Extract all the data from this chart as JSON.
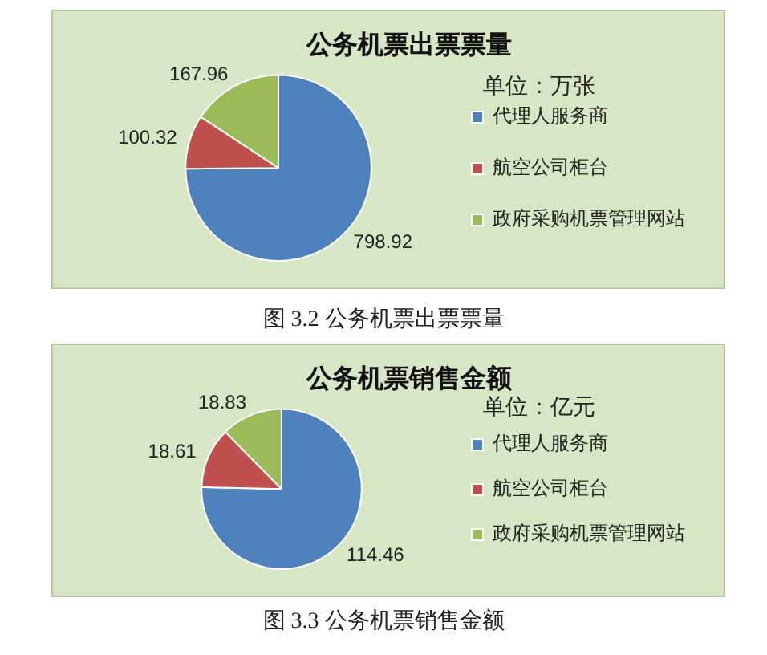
{
  "chart_data": [
    {
      "type": "pie",
      "title": "公务机票出票票量",
      "categories": [
        "代理人服务商",
        "航空公司柜台",
        "政府采购机票管理网站"
      ],
      "values": [
        798.92,
        100.32,
        167.96
      ],
      "colors": [
        "#4f81bd",
        "#c0504d",
        "#9bbb59"
      ],
      "data_labels": true,
      "legend": "right",
      "annotations": [
        "单位：万张",
        "图 3.2 公务机票出票票量"
      ]
    },
    {
      "type": "pie",
      "title": "公务机票销售金额",
      "categories": [
        "代理人服务商",
        "航空公司柜台",
        "政府采购机票管理网站"
      ],
      "values": [
        114.46,
        18.61,
        18.83
      ],
      "colors": [
        "#4f81bd",
        "#c0504d",
        "#9bbb59"
      ],
      "data_labels": true,
      "legend": "right",
      "annotations": [
        "单位：亿元",
        "图 3.3 公务机票销售金额"
      ]
    }
  ]
}
